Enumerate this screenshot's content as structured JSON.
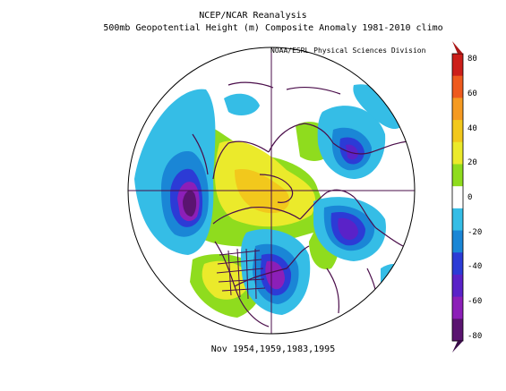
{
  "header": {
    "title": "NCEP/NCAR Reanalysis",
    "subtitle": "500mb Geopotential Height (m) Composite Anomaly 1981-2010 climo",
    "credit": "NOAA/ESRL Physical Sciences Division"
  },
  "footer": {
    "caption": "Nov 1954,1959,1983,1995"
  },
  "colorbar": {
    "tick_labels": [
      "80",
      "60",
      "40",
      "20",
      "0",
      "-20",
      "-40",
      "-60",
      "-80"
    ],
    "bins": [
      {
        "range": "60 to 80",
        "color": "#cc1f1a"
      },
      {
        "range": "50 to 60",
        "color": "#ee5a1e"
      },
      {
        "range": "40 to 50",
        "color": "#f59a22"
      },
      {
        "range": "30 to 40",
        "color": "#f2c81c"
      },
      {
        "range": "20 to 30",
        "color": "#ebea2b"
      },
      {
        "range": "10 to 20",
        "color": "#8fdc1e"
      },
      {
        "range": "-10 to 10",
        "color": "#ffffff"
      },
      {
        "range": "-20 to -10",
        "color": "#35bde6"
      },
      {
        "range": "-30 to -20",
        "color": "#1a86d6"
      },
      {
        "range": "-40 to -30",
        "color": "#2c3bd6"
      },
      {
        "range": "-50 to -40",
        "color": "#5a22c8"
      },
      {
        "range": "-60 to -50",
        "color": "#8c1fb8"
      },
      {
        "range": "-80 to -60",
        "color": "#5a1470"
      }
    ]
  },
  "map": {
    "projection": "polar stereographic, north pole centered",
    "coastline_color": "#4a0d4a",
    "features": [
      {
        "name": "north-pacific-trough",
        "sign": "negative",
        "min_anomaly": -70
      },
      {
        "name": "eastern-north-america-trough",
        "sign": "negative",
        "min_anomaly": -60
      },
      {
        "name": "siberia-trough",
        "sign": "negative",
        "min_anomaly": -50
      },
      {
        "name": "europe-trough",
        "sign": "negative",
        "min_anomaly": -50
      },
      {
        "name": "arctic-ridge",
        "sign": "positive",
        "max_anomaly": 30
      },
      {
        "name": "western-north-america-ridge",
        "sign": "positive",
        "max_anomaly": 30
      }
    ]
  }
}
